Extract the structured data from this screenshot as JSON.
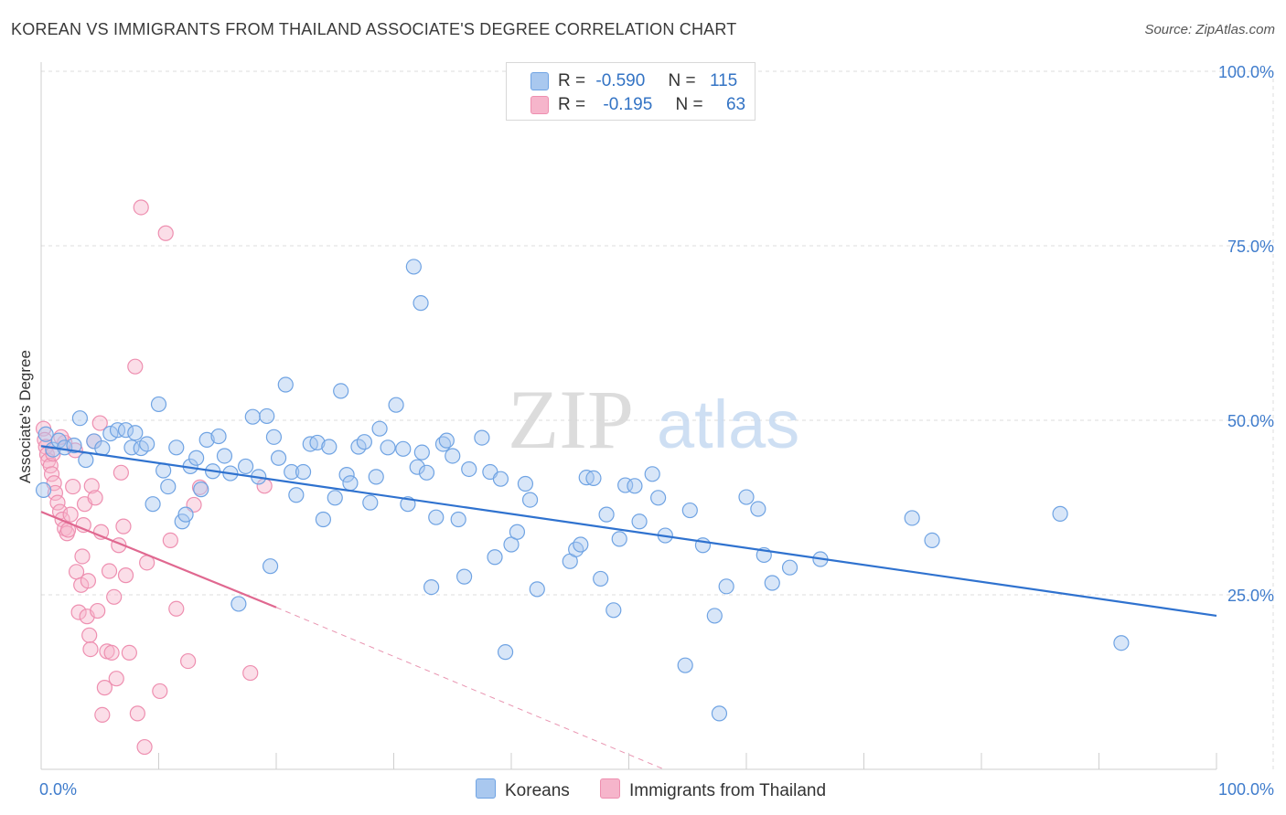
{
  "title": "KOREAN VS IMMIGRANTS FROM THAILAND ASSOCIATE'S DEGREE CORRELATION CHART",
  "source": "Source: ZipAtlas.com",
  "watermark": {
    "zip": "ZIP",
    "atlas": "atlas"
  },
  "colors": {
    "korean_fill": "#a9c8ef",
    "korean_stroke": "#6fa3e3",
    "korean_line": "#2f72cf",
    "thai_fill": "#f6b5cb",
    "thai_stroke": "#ee8fb0",
    "thai_line": "#e06890",
    "axis_text": "#3f7ccc",
    "grid": "#dddddd"
  },
  "legend": {
    "korean": {
      "r_label": "R =",
      "r_value": "-0.590",
      "n_label": "N =",
      "n_value": "115"
    },
    "thai": {
      "r_label": "R =",
      "r_value": "-0.195",
      "n_label": "N =",
      "n_value": "63"
    }
  },
  "bottom_legend": {
    "korean": "Koreans",
    "thai": "Immigrants from Thailand"
  },
  "chart_data": {
    "type": "scatter",
    "title": "KOREAN VS IMMIGRANTS FROM THAILAND ASSOCIATE'S DEGREE CORRELATION CHART",
    "xlabel": "",
    "ylabel": "Associate's Degree",
    "xlim": [
      0,
      100
    ],
    "ylim": [
      0,
      100
    ],
    "x_tick_labels": [
      "0.0%",
      "100.0%"
    ],
    "y_tick_labels": [
      "100.0%",
      "75.0%",
      "50.0%",
      "25.0%"
    ],
    "y_ticks": [
      100,
      75,
      50,
      25
    ],
    "grid": true,
    "series": [
      {
        "name": "Koreans",
        "trend": {
          "x": [
            0,
            100
          ],
          "y": [
            46.3,
            22.0
          ]
        },
        "points": [
          [
            0.2,
            40.0
          ],
          [
            0.4,
            48.0
          ],
          [
            1.0,
            45.8
          ],
          [
            1.5,
            47.1
          ],
          [
            2.0,
            46.1
          ],
          [
            2.8,
            46.4
          ],
          [
            3.3,
            50.3
          ],
          [
            3.8,
            44.3
          ],
          [
            4.5,
            47.0
          ],
          [
            5.2,
            46.0
          ],
          [
            5.9,
            48.1
          ],
          [
            6.5,
            48.6
          ],
          [
            7.2,
            48.6
          ],
          [
            7.7,
            46.1
          ],
          [
            8.0,
            48.2
          ],
          [
            8.5,
            46.0
          ],
          [
            9.0,
            46.6
          ],
          [
            9.5,
            38.0
          ],
          [
            10.0,
            52.3
          ],
          [
            10.4,
            42.8
          ],
          [
            10.8,
            40.5
          ],
          [
            11.5,
            46.1
          ],
          [
            12.0,
            35.5
          ],
          [
            12.3,
            36.5
          ],
          [
            12.7,
            43.4
          ],
          [
            13.2,
            44.6
          ],
          [
            13.6,
            40.1
          ],
          [
            14.1,
            47.2
          ],
          [
            14.6,
            42.7
          ],
          [
            15.1,
            47.7
          ],
          [
            15.6,
            44.9
          ],
          [
            16.1,
            42.4
          ],
          [
            16.8,
            23.7
          ],
          [
            17.4,
            43.4
          ],
          [
            18.0,
            50.5
          ],
          [
            18.5,
            41.9
          ],
          [
            19.2,
            50.6
          ],
          [
            19.5,
            29.1
          ],
          [
            19.8,
            47.6
          ],
          [
            20.2,
            44.6
          ],
          [
            20.8,
            55.1
          ],
          [
            21.3,
            42.6
          ],
          [
            21.7,
            39.3
          ],
          [
            22.3,
            42.6
          ],
          [
            22.9,
            46.6
          ],
          [
            23.5,
            46.8
          ],
          [
            24.0,
            35.8
          ],
          [
            24.5,
            46.2
          ],
          [
            25.0,
            38.9
          ],
          [
            25.5,
            54.2
          ],
          [
            26.0,
            42.2
          ],
          [
            26.3,
            41.0
          ],
          [
            27.0,
            46.2
          ],
          [
            27.5,
            46.9
          ],
          [
            28.0,
            38.2
          ],
          [
            28.5,
            41.9
          ],
          [
            28.8,
            48.8
          ],
          [
            29.5,
            46.1
          ],
          [
            30.2,
            52.2
          ],
          [
            30.8,
            45.9
          ],
          [
            31.2,
            38.0
          ],
          [
            32.0,
            43.3
          ],
          [
            32.4,
            45.4
          ],
          [
            32.8,
            42.5
          ],
          [
            33.2,
            26.1
          ],
          [
            33.6,
            36.1
          ],
          [
            34.2,
            46.6
          ],
          [
            34.5,
            47.1
          ],
          [
            35.0,
            44.9
          ],
          [
            35.5,
            35.8
          ],
          [
            36.0,
            27.6
          ],
          [
            36.4,
            43.0
          ],
          [
            37.5,
            47.5
          ],
          [
            38.2,
            42.6
          ],
          [
            38.6,
            30.4
          ],
          [
            39.1,
            41.6
          ],
          [
            39.5,
            16.8
          ],
          [
            40.0,
            32.2
          ],
          [
            40.5,
            34.0
          ],
          [
            41.2,
            40.9
          ],
          [
            41.6,
            38.6
          ],
          [
            42.2,
            25.8
          ],
          [
            45.0,
            29.8
          ],
          [
            45.5,
            31.5
          ],
          [
            45.9,
            32.2
          ],
          [
            46.4,
            41.8
          ],
          [
            47.0,
            41.7
          ],
          [
            47.6,
            27.3
          ],
          [
            48.1,
            36.5
          ],
          [
            48.7,
            22.8
          ],
          [
            49.2,
            33.0
          ],
          [
            49.7,
            40.7
          ],
          [
            50.5,
            40.6
          ],
          [
            50.9,
            35.5
          ],
          [
            52.0,
            42.3
          ],
          [
            52.5,
            38.9
          ],
          [
            53.1,
            33.5
          ],
          [
            54.8,
            14.9
          ],
          [
            55.2,
            37.1
          ],
          [
            56.3,
            32.1
          ],
          [
            57.3,
            22.0
          ],
          [
            57.7,
            8.0
          ],
          [
            58.3,
            26.2
          ],
          [
            60.0,
            39.0
          ],
          [
            61.5,
            30.7
          ],
          [
            62.2,
            26.7
          ],
          [
            61.0,
            37.3
          ],
          [
            63.7,
            28.9
          ],
          [
            66.3,
            30.1
          ],
          [
            74.1,
            36.0
          ],
          [
            75.8,
            32.8
          ],
          [
            86.7,
            36.6
          ],
          [
            91.9,
            18.1
          ],
          [
            31.7,
            72.0
          ],
          [
            32.3,
            66.8
          ]
        ]
      },
      {
        "name": "Immigrants from Thailand",
        "trend": {
          "x": [
            0,
            20
          ],
          "y": [
            36.9,
            23.2
          ],
          "dashed_to": {
            "x": [
              20,
              53
            ],
            "y": [
              23.2,
              0
            ]
          }
        },
        "points": [
          [
            0.2,
            48.8
          ],
          [
            0.3,
            47.2
          ],
          [
            0.4,
            46.2
          ],
          [
            0.5,
            45.1
          ],
          [
            0.6,
            44.2
          ],
          [
            0.8,
            43.5
          ],
          [
            0.9,
            42.3
          ],
          [
            1.1,
            41.0
          ],
          [
            1.2,
            39.6
          ],
          [
            1.4,
            38.2
          ],
          [
            1.6,
            36.9
          ],
          [
            1.8,
            35.8
          ],
          [
            2.0,
            34.5
          ],
          [
            2.2,
            33.8
          ],
          [
            2.3,
            34.3
          ],
          [
            2.5,
            36.5
          ],
          [
            2.7,
            40.5
          ],
          [
            2.9,
            45.7
          ],
          [
            3.0,
            28.3
          ],
          [
            3.2,
            22.5
          ],
          [
            3.4,
            26.4
          ],
          [
            3.5,
            30.5
          ],
          [
            3.6,
            35.0
          ],
          [
            3.7,
            38.0
          ],
          [
            3.9,
            21.9
          ],
          [
            4.0,
            27.0
          ],
          [
            4.1,
            19.2
          ],
          [
            4.2,
            17.2
          ],
          [
            4.3,
            40.6
          ],
          [
            4.5,
            47.0
          ],
          [
            4.6,
            38.9
          ],
          [
            4.8,
            22.7
          ],
          [
            5.0,
            49.6
          ],
          [
            5.1,
            34.0
          ],
          [
            5.2,
            7.8
          ],
          [
            5.4,
            11.7
          ],
          [
            5.6,
            16.9
          ],
          [
            5.8,
            28.4
          ],
          [
            6.0,
            16.7
          ],
          [
            6.2,
            24.7
          ],
          [
            6.4,
            13.0
          ],
          [
            6.6,
            32.1
          ],
          [
            6.8,
            42.5
          ],
          [
            7.0,
            34.8
          ],
          [
            7.2,
            27.8
          ],
          [
            7.5,
            16.7
          ],
          [
            8.0,
            57.7
          ],
          [
            8.2,
            8.0
          ],
          [
            8.5,
            80.5
          ],
          [
            8.8,
            3.2
          ],
          [
            9.0,
            29.6
          ],
          [
            10.1,
            11.2
          ],
          [
            10.6,
            76.8
          ],
          [
            11.0,
            32.8
          ],
          [
            11.5,
            23.0
          ],
          [
            12.5,
            15.5
          ],
          [
            13.0,
            37.9
          ],
          [
            13.5,
            40.4
          ],
          [
            17.8,
            13.8
          ],
          [
            19.0,
            40.6
          ],
          [
            2.0,
            46.8
          ],
          [
            1.0,
            45.2
          ],
          [
            1.7,
            47.6
          ]
        ]
      }
    ]
  }
}
